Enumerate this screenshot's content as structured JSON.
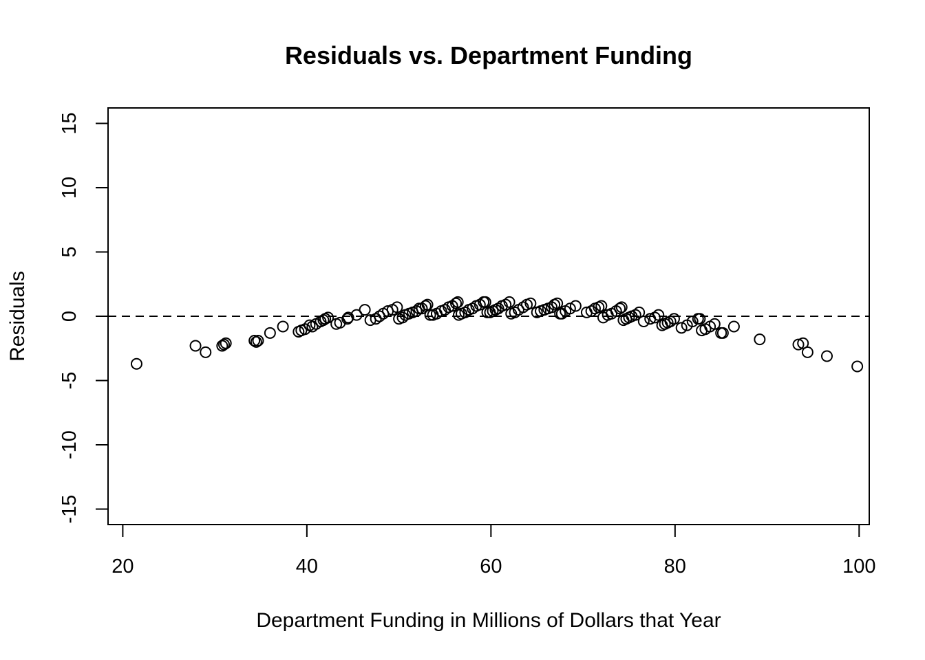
{
  "chart_data": {
    "type": "scatter",
    "title": "Residuals vs. Department Funding",
    "xlabel": "Department Funding in Millions of Dollars that Year",
    "ylabel": "Residuals",
    "xlim": [
      18.4,
      101.1
    ],
    "ylim": [
      -16.2,
      16.2
    ],
    "x_ticks": [
      20,
      40,
      60,
      80,
      100
    ],
    "y_ticks": [
      -15,
      -10,
      -5,
      0,
      5,
      10,
      15
    ],
    "x_tick_labels": [
      "20",
      "40",
      "60",
      "80",
      "100"
    ],
    "y_tick_labels": [
      "-15",
      "-10",
      "-5",
      "0",
      "5",
      "10",
      "15"
    ],
    "reference_line": {
      "y": 0,
      "style": "dashed"
    },
    "grid": false,
    "legend": "none",
    "points": [
      [
        21.5,
        -3.7
      ],
      [
        27.9,
        -2.3
      ],
      [
        29.0,
        -2.8
      ],
      [
        30.8,
        -2.3
      ],
      [
        31.0,
        -2.2
      ],
      [
        31.2,
        -2.1
      ],
      [
        34.3,
        -1.9
      ],
      [
        34.5,
        -2.0
      ],
      [
        34.7,
        -1.9
      ],
      [
        36.0,
        -1.3
      ],
      [
        37.4,
        -0.8
      ],
      [
        39.1,
        -1.2
      ],
      [
        39.4,
        -1.1
      ],
      [
        39.8,
        -1.0
      ],
      [
        40.3,
        -0.7
      ],
      [
        40.6,
        -0.8
      ],
      [
        41.0,
        -0.6
      ],
      [
        41.5,
        -0.4
      ],
      [
        41.8,
        -0.3
      ],
      [
        42.0,
        -0.2
      ],
      [
        42.3,
        -0.1
      ],
      [
        43.2,
        -0.6
      ],
      [
        43.6,
        -0.5
      ],
      [
        44.4,
        -0.2
      ],
      [
        44.5,
        -0.1
      ],
      [
        45.4,
        0.1
      ],
      [
        46.3,
        0.5
      ],
      [
        46.9,
        -0.3
      ],
      [
        47.5,
        -0.2
      ],
      [
        47.9,
        0.0
      ],
      [
        48.3,
        0.2
      ],
      [
        48.8,
        0.4
      ],
      [
        49.3,
        0.5
      ],
      [
        49.8,
        0.7
      ],
      [
        50.0,
        -0.2
      ],
      [
        50.4,
        -0.1
      ],
      [
        50.7,
        0.1
      ],
      [
        51.1,
        0.2
      ],
      [
        51.5,
        0.3
      ],
      [
        51.9,
        0.4
      ],
      [
        52.2,
        0.6
      ],
      [
        52.5,
        0.6
      ],
      [
        52.9,
        0.8
      ],
      [
        53.1,
        0.9
      ],
      [
        53.4,
        0.1
      ],
      [
        53.7,
        0.1
      ],
      [
        54.1,
        0.2
      ],
      [
        54.6,
        0.4
      ],
      [
        55.0,
        0.5
      ],
      [
        55.4,
        0.7
      ],
      [
        55.8,
        0.8
      ],
      [
        56.2,
        1.0
      ],
      [
        56.4,
        1.1
      ],
      [
        56.5,
        0.1
      ],
      [
        56.8,
        0.2
      ],
      [
        57.2,
        0.3
      ],
      [
        57.6,
        0.5
      ],
      [
        58.0,
        0.6
      ],
      [
        58.4,
        0.8
      ],
      [
        58.8,
        0.9
      ],
      [
        59.2,
        1.1
      ],
      [
        59.4,
        1.1
      ],
      [
        59.6,
        0.3
      ],
      [
        59.9,
        0.3
      ],
      [
        60.2,
        0.4
      ],
      [
        60.5,
        0.5
      ],
      [
        60.8,
        0.6
      ],
      [
        61.2,
        0.8
      ],
      [
        61.6,
        0.9
      ],
      [
        62.0,
        1.1
      ],
      [
        62.2,
        0.2
      ],
      [
        62.6,
        0.3
      ],
      [
        63.0,
        0.5
      ],
      [
        63.5,
        0.7
      ],
      [
        63.9,
        0.9
      ],
      [
        64.3,
        1.0
      ],
      [
        65.0,
        0.3
      ],
      [
        65.4,
        0.4
      ],
      [
        65.8,
        0.5
      ],
      [
        66.2,
        0.6
      ],
      [
        66.6,
        0.7
      ],
      [
        66.9,
        0.9
      ],
      [
        67.2,
        1.0
      ],
      [
        67.5,
        0.2
      ],
      [
        67.7,
        0.2
      ],
      [
        68.1,
        0.4
      ],
      [
        68.6,
        0.6
      ],
      [
        69.2,
        0.8
      ],
      [
        70.4,
        0.3
      ],
      [
        70.9,
        0.4
      ],
      [
        71.3,
        0.6
      ],
      [
        71.7,
        0.7
      ],
      [
        72.0,
        0.8
      ],
      [
        72.2,
        -0.1
      ],
      [
        72.7,
        0.1
      ],
      [
        73.1,
        0.2
      ],
      [
        73.6,
        0.4
      ],
      [
        74.0,
        0.6
      ],
      [
        74.2,
        0.7
      ],
      [
        74.4,
        -0.3
      ],
      [
        74.7,
        -0.2
      ],
      [
        75.0,
        -0.1
      ],
      [
        75.3,
        0.0
      ],
      [
        75.7,
        0.1
      ],
      [
        76.1,
        0.3
      ],
      [
        76.6,
        -0.4
      ],
      [
        77.3,
        -0.2
      ],
      [
        77.8,
        -0.1
      ],
      [
        78.2,
        0.1
      ],
      [
        78.6,
        -0.7
      ],
      [
        78.9,
        -0.6
      ],
      [
        79.2,
        -0.5
      ],
      [
        79.5,
        -0.4
      ],
      [
        79.9,
        -0.2
      ],
      [
        80.7,
        -0.9
      ],
      [
        81.3,
        -0.7
      ],
      [
        81.9,
        -0.4
      ],
      [
        82.5,
        -0.2
      ],
      [
        82.7,
        -0.2
      ],
      [
        82.9,
        -1.1
      ],
      [
        83.3,
        -1.0
      ],
      [
        83.8,
        -0.8
      ],
      [
        84.3,
        -0.6
      ],
      [
        85.0,
        -1.3
      ],
      [
        85.2,
        -1.3
      ],
      [
        86.4,
        -0.8
      ],
      [
        89.2,
        -1.8
      ],
      [
        93.4,
        -2.2
      ],
      [
        93.9,
        -2.1
      ],
      [
        94.4,
        -2.8
      ],
      [
        96.5,
        -3.1
      ],
      [
        99.8,
        -3.9
      ]
    ]
  }
}
